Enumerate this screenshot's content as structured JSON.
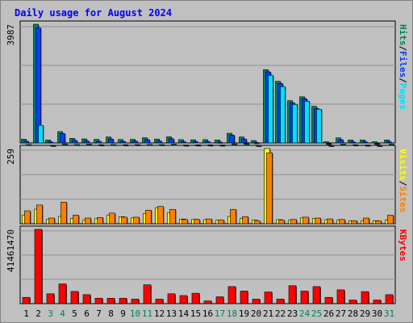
{
  "chart_data": {
    "type": "bar",
    "title": "Daily usage for August 2024",
    "colors": {
      "background": "#c0c0c0",
      "title": "#0000ff",
      "hits": "#00805c",
      "files": "#0040ff",
      "pages": "#00e0ff",
      "visits": "#ffff00",
      "sites": "#ff8000",
      "kbytes": "#ff0000",
      "weekend_label": "#00805c",
      "weekday_label": "#000000"
    },
    "days": [
      "1",
      "2",
      "3",
      "4",
      "5",
      "6",
      "7",
      "8",
      "9",
      "10",
      "11",
      "12",
      "13",
      "14",
      "15",
      "16",
      "17",
      "18",
      "19",
      "20",
      "21",
      "22",
      "23",
      "24",
      "25",
      "26",
      "27",
      "28",
      "29",
      "30",
      "31"
    ],
    "weekend_days": [
      3,
      4,
      10,
      11,
      17,
      18,
      24,
      25,
      31
    ],
    "panels": [
      {
        "id": "top",
        "scale_label": "3987",
        "side_labels": [
          {
            "text": "Hits",
            "color": "#00805c"
          },
          {
            "text": "/",
            "color": "#000000"
          },
          {
            "text": "Files",
            "color": "#0040ff"
          },
          {
            "text": "/",
            "color": "#000000"
          },
          {
            "text": "Pages",
            "color": "#00e0ff"
          }
        ],
        "max": 3987,
        "series": [
          {
            "name": "Hits",
            "values": [
              125,
              3987,
              100,
              380,
              155,
              135,
              120,
              200,
              115,
              120,
              175,
              130,
              205,
              110,
              105,
              110,
              100,
              325,
              200,
              80,
              2460,
              2070,
              1420,
              1550,
              1230,
              40,
              170,
              100,
              100,
              40,
              100
            ]
          },
          {
            "name": "Files",
            "values": [
              110,
              3920,
              90,
              370,
              140,
              120,
              110,
              185,
              105,
              115,
              165,
              115,
              195,
              95,
              95,
              100,
              85,
              315,
              185,
              70,
              2440,
              2050,
              1400,
              1540,
              1210,
              35,
              160,
              90,
              90,
              35,
              90
            ]
          },
          {
            "name": "Pages",
            "values": [
              60,
              700,
              30,
              80,
              60,
              70,
              50,
              60,
              50,
              55,
              60,
              55,
              70,
              40,
              45,
              45,
              40,
              80,
              90,
              20,
              2380,
              2000,
              1400,
              1510,
              1240,
              20,
              70,
              50,
              40,
              20,
              70
            ]
          }
        ]
      },
      {
        "id": "middle",
        "scale_label": "259",
        "side_labels": [
          {
            "text": "Visits",
            "color": "#ffff00"
          },
          {
            "text": "/",
            "color": "#000000"
          },
          {
            "text": "Sites",
            "color": "#ff8000"
          }
        ],
        "max": 259,
        "series": [
          {
            "name": "Visits",
            "values": [
              30,
              50,
              15,
              25,
              18,
              12,
              17,
              30,
              24,
              20,
              35,
              55,
              38,
              16,
              15,
              14,
              12,
              25,
              18,
              12,
              259,
              14,
              13,
              20,
              18,
              14,
              12,
              10,
              10,
              10,
              12
            ]
          },
          {
            "name": "Sites",
            "values": [
              50,
              70,
              25,
              80,
              35,
              25,
              27,
              42,
              28,
              28,
              52,
              65,
              55,
              20,
              20,
              22,
              18,
              55,
              30,
              15,
              250,
              18,
              20,
              28,
              25,
              22,
              20,
              16,
              25,
              15,
              35
            ]
          }
        ]
      },
      {
        "id": "bottom",
        "scale_label": "41461470",
        "side_labels": [
          {
            "text": "KBytes",
            "color": "#ff0000"
          }
        ],
        "max": 41461470,
        "series": [
          {
            "name": "KBytes",
            "values": [
              3500000,
              41461470,
              5500000,
              11000000,
              6800000,
              5000000,
              3000000,
              3000000,
              3000000,
              2500000,
              10500000,
              2500000,
              5500000,
              4500000,
              5800000,
              1500000,
              3800000,
              9500000,
              7000000,
              2500000,
              6500000,
              2500000,
              10000000,
              7000000,
              9500000,
              3500000,
              7700000,
              2000000,
              6700000,
              2000000,
              5000000
            ]
          }
        ]
      }
    ]
  }
}
